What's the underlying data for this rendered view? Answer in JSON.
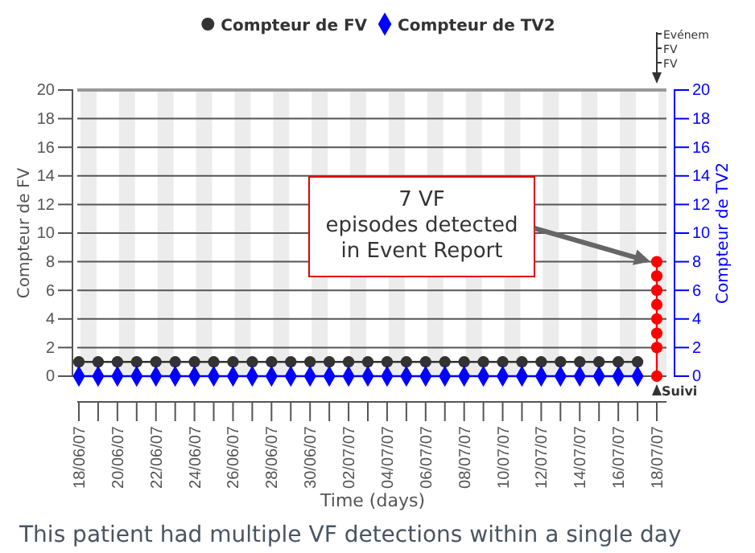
{
  "chart_data": {
    "type": "line",
    "categories": [
      "18/06/07",
      null,
      "20/06/07",
      null,
      "22/06/07",
      null,
      "24/06/07",
      null,
      "26/06/07",
      null,
      "28/06/07",
      null,
      "30/06/07",
      null,
      "02/07/07",
      null,
      "04/07/07",
      null,
      "06/07/07",
      null,
      "08/07/07",
      null,
      "10/07/07",
      null,
      "12/07/07",
      null,
      "14/07/07",
      null,
      "16/07/07",
      null,
      "18/07/07"
    ],
    "series": [
      {
        "name": "Compteur de FV",
        "color": "#333333",
        "marker": "circle",
        "values": [
          1,
          1,
          1,
          1,
          1,
          1,
          1,
          1,
          1,
          1,
          1,
          1,
          1,
          1,
          1,
          1,
          1,
          1,
          1,
          1,
          1,
          1,
          1,
          1,
          1,
          1,
          1,
          1,
          1,
          1,
          null
        ]
      },
      {
        "name": "Compteur de TV2",
        "color": "#0000ff",
        "marker": "diamond",
        "axis": "y2",
        "values": [
          0,
          0,
          0,
          0,
          0,
          0,
          0,
          0,
          0,
          0,
          0,
          0,
          0,
          0,
          0,
          0,
          0,
          0,
          0,
          0,
          0,
          0,
          0,
          0,
          0,
          0,
          0,
          0,
          0,
          0,
          null
        ]
      },
      {
        "color": "#ff0000",
        "marker": "circle",
        "x": [
          "18/07/07",
          "18/07/07",
          "18/07/07",
          "18/07/07",
          "18/07/07",
          "18/07/07",
          "18/07/07",
          "18/07/07"
        ],
        "values": [
          0,
          2,
          3,
          4,
          5,
          6,
          7,
          8
        ]
      }
    ],
    "xlabel": "Time (days)",
    "ylabel": "Compteur de FV",
    "y2label": "Compteur de TV2",
    "ylim": [
      0,
      20
    ],
    "yticks": [
      0,
      2,
      4,
      6,
      8,
      10,
      12,
      14,
      16,
      18,
      20
    ],
    "y2lim": [
      0,
      20
    ],
    "y2ticks": [
      0,
      2,
      4,
      6,
      8,
      10,
      12,
      14,
      16,
      18,
      20
    ],
    "grid": "y",
    "legend": "top",
    "annotations": [
      "7 VF\nepisodes detected\nin Event Report",
      "Evénem\nFV\nFV",
      "Suivi",
      "This patient had multiple VF detections within a single day"
    ]
  }
}
